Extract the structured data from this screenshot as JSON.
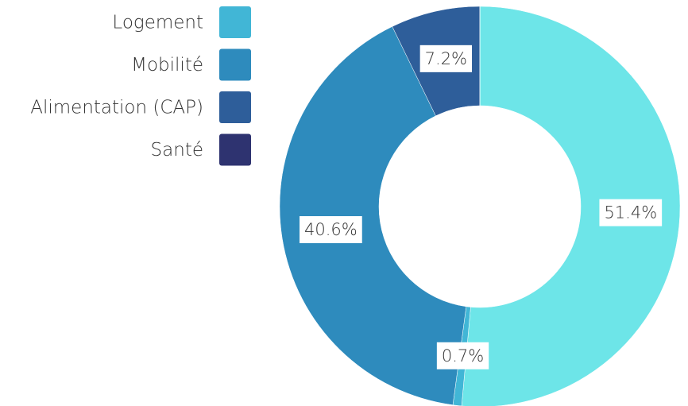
{
  "chart_data": {
    "type": "pie",
    "categories": [
      null,
      "Logement",
      "Mobilité",
      "Alimentation (CAP)",
      "Santé"
    ],
    "values": [
      51.4,
      0.7,
      40.6,
      7.2,
      0
    ],
    "value_labels": [
      "51.4%",
      "0.7%",
      "40.6%",
      "7.2%",
      null
    ],
    "colors": [
      "#6de5e8",
      "#41b6d6",
      "#2e8bbd",
      "#2e5e9a",
      "#2e3370"
    ],
    "legend": "top-left"
  }
}
